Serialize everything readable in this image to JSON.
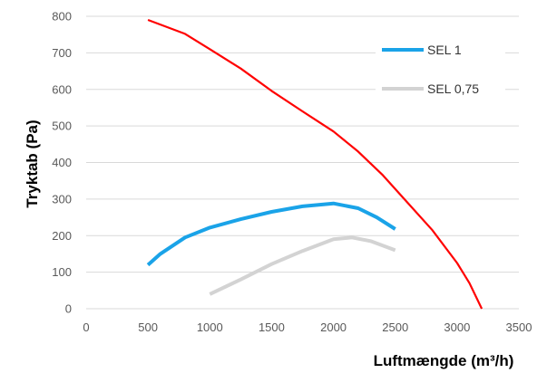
{
  "chart_data": {
    "type": "line",
    "xlabel": "Luftmængde (m³/h)",
    "ylabel": "Tryktab (Pa)",
    "xlim": [
      0,
      3500
    ],
    "ylim": [
      0,
      800
    ],
    "x_ticks": [
      "0",
      "500",
      "1000",
      "1500",
      "2000",
      "2500",
      "3000",
      "3500"
    ],
    "y_ticks": [
      "0",
      "100",
      "200",
      "300",
      "400",
      "500",
      "600",
      "700",
      "800"
    ],
    "grid": "horizontal",
    "legend_placement": "top-right",
    "series": [
      {
        "name": "",
        "color": "#ff0000",
        "points": [
          [
            500,
            790
          ],
          [
            800,
            752
          ],
          [
            1000,
            710
          ],
          [
            1250,
            657
          ],
          [
            1500,
            596
          ],
          [
            1750,
            540
          ],
          [
            2000,
            485
          ],
          [
            2200,
            430
          ],
          [
            2400,
            365
          ],
          [
            2600,
            290
          ],
          [
            2800,
            215
          ],
          [
            3000,
            125
          ],
          [
            3100,
            70
          ],
          [
            3200,
            0
          ]
        ]
      },
      {
        "name": "SEL 1",
        "color": "#1aa3e8",
        "points": [
          [
            500,
            120
          ],
          [
            600,
            150
          ],
          [
            800,
            195
          ],
          [
            1000,
            222
          ],
          [
            1250,
            245
          ],
          [
            1500,
            265
          ],
          [
            1750,
            280
          ],
          [
            2000,
            288
          ],
          [
            2200,
            275
          ],
          [
            2350,
            250
          ],
          [
            2500,
            218
          ]
        ]
      },
      {
        "name": "SEL 0,75",
        "color": "#d3d3d3",
        "points": [
          [
            1000,
            40
          ],
          [
            1250,
            80
          ],
          [
            1500,
            122
          ],
          [
            1750,
            158
          ],
          [
            2000,
            190
          ],
          [
            2150,
            195
          ],
          [
            2300,
            185
          ],
          [
            2500,
            160
          ]
        ]
      }
    ]
  }
}
